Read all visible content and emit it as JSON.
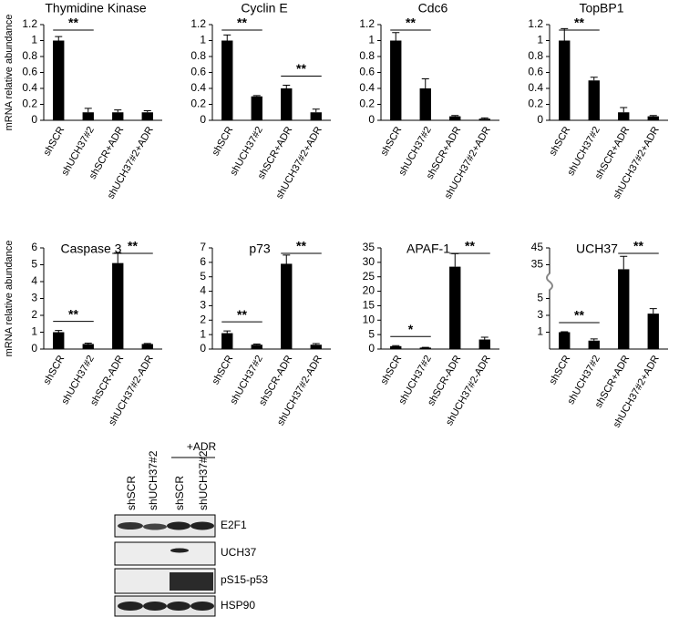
{
  "chart_data": [
    {
      "type": "bar",
      "title": "Thymidine Kinase",
      "ylabel": "mRNA relative abundance",
      "categories": [
        "shSCR",
        "shUCH37#2",
        "shSCR+ADR",
        "shUCH37#2+ADR"
      ],
      "values": [
        1.0,
        0.1,
        0.1,
        0.1
      ],
      "errors": [
        0.05,
        0.05,
        0.03,
        0.02
      ],
      "color": "#000000",
      "ylim": [
        0,
        1.2
      ],
      "yticks": [
        0,
        0.2,
        0.4,
        0.6,
        0.8,
        1,
        1.2
      ],
      "annotations": [
        {
          "text": "**",
          "between": [
            0,
            1
          ]
        }
      ]
    },
    {
      "type": "bar",
      "title": "Cyclin E",
      "categories": [
        "shSCR",
        "shUCH37#2",
        "shSCR+ADR",
        "shUCH37#2+ADR"
      ],
      "values": [
        1.0,
        0.3,
        0.4,
        0.1
      ],
      "errors": [
        0.07,
        0.01,
        0.04,
        0.04
      ],
      "color": "#000000",
      "ylim": [
        0,
        1.2
      ],
      "yticks": [
        0,
        0.2,
        0.4,
        0.6,
        0.8,
        1,
        1.2
      ],
      "annotations": [
        {
          "text": "**",
          "between": [
            0,
            1
          ]
        },
        {
          "text": "**",
          "between": [
            2,
            3
          ]
        }
      ]
    },
    {
      "type": "bar",
      "title": "Cdc6",
      "categories": [
        "shSCR",
        "shUCH37#2",
        "shSCR+ADR",
        "shUCH37#2+ADR"
      ],
      "values": [
        1.0,
        0.4,
        0.05,
        0.02
      ],
      "errors": [
        0.1,
        0.12,
        0.01,
        0.01
      ],
      "color": "#000000",
      "ylim": [
        0,
        1.2
      ],
      "yticks": [
        0,
        0.2,
        0.4,
        0.6,
        0.8,
        1,
        1.2
      ],
      "annotations": [
        {
          "text": "**",
          "between": [
            0,
            1
          ]
        }
      ]
    },
    {
      "type": "bar",
      "title": "TopBP1",
      "categories": [
        "shSCR",
        "shUCH37#2",
        "shSCR+ADR",
        "shUCH37#2+ADR"
      ],
      "values": [
        1.0,
        0.5,
        0.1,
        0.05
      ],
      "errors": [
        0.15,
        0.04,
        0.06,
        0.01
      ],
      "color": "#000000",
      "ylim": [
        0,
        1.2
      ],
      "yticks": [
        0,
        0.2,
        0.4,
        0.6,
        0.8,
        1,
        1.2
      ],
      "annotations": [
        {
          "text": "**",
          "between": [
            0,
            1
          ]
        }
      ]
    },
    {
      "type": "bar",
      "title": "Caspase 3",
      "ylabel": "mRNA relative abundance",
      "categories": [
        "shSCR",
        "shUCH37#2",
        "shSCR-ADR",
        "shUCH37#2-ADR"
      ],
      "values": [
        1.0,
        0.3,
        5.1,
        0.3
      ],
      "errors": [
        0.1,
        0.05,
        0.6,
        0.03
      ],
      "color": "#000000",
      "ylim": [
        0,
        6
      ],
      "yticks": [
        0,
        1,
        2,
        3,
        4,
        5,
        6
      ],
      "annotations": [
        {
          "text": "**",
          "between": [
            0,
            1
          ]
        },
        {
          "text": "**",
          "between": [
            2,
            3
          ]
        }
      ]
    },
    {
      "type": "bar",
      "title": "p73",
      "categories": [
        "shSCR",
        "shUCH37#2",
        "shSCR-ADR",
        "shUCH37#2-ADR"
      ],
      "values": [
        1.1,
        0.3,
        5.9,
        0.3
      ],
      "errors": [
        0.15,
        0.05,
        0.6,
        0.08
      ],
      "color": "#000000",
      "ylim": [
        0,
        7
      ],
      "yticks": [
        0,
        1,
        2,
        3,
        4,
        5,
        6,
        7
      ],
      "annotations": [
        {
          "text": "**",
          "between": [
            0,
            1
          ]
        },
        {
          "text": "**",
          "between": [
            2,
            3
          ]
        }
      ]
    },
    {
      "type": "bar",
      "title": "APAF-1",
      "categories": [
        "shSCR",
        "shUCH37#2",
        "shSCR-ADR",
        "shUCH37#2-ADR"
      ],
      "values": [
        1.0,
        0.5,
        28.5,
        3.3
      ],
      "errors": [
        0.2,
        0.1,
        4.5,
        0.8
      ],
      "color": "#000000",
      "ylim": [
        0,
        35
      ],
      "yticks": [
        0,
        5,
        10,
        15,
        20,
        25,
        30,
        35
      ],
      "annotations": [
        {
          "text": "*",
          "between": [
            0,
            1
          ]
        },
        {
          "text": "**",
          "between": [
            2,
            3
          ]
        }
      ]
    },
    {
      "type": "bar",
      "title": "UCH37",
      "categories": [
        "shSCR",
        "shUCH37#2",
        "shSCR+ADR",
        "shUCH37#2+ADR"
      ],
      "values": [
        1.0,
        0.5,
        31,
        3.2
      ],
      "errors": [
        0.05,
        0.1,
        9,
        0.6
      ],
      "color": "#000000",
      "ylim": [
        0,
        45
      ],
      "yticks": [
        1,
        3,
        5,
        35,
        45
      ],
      "axis_break": true,
      "annotations": [
        {
          "text": "**",
          "between": [
            0,
            1
          ]
        },
        {
          "text": "**",
          "between": [
            2,
            3
          ]
        }
      ]
    }
  ],
  "blot": {
    "lanes": [
      "shSCR",
      "shUCH37#2",
      "shSCR",
      "shUCH37#2"
    ],
    "group_label": "+ADR",
    "bands": [
      "E2F1",
      "UCH37",
      "pS15-p53",
      "HSP90"
    ]
  }
}
